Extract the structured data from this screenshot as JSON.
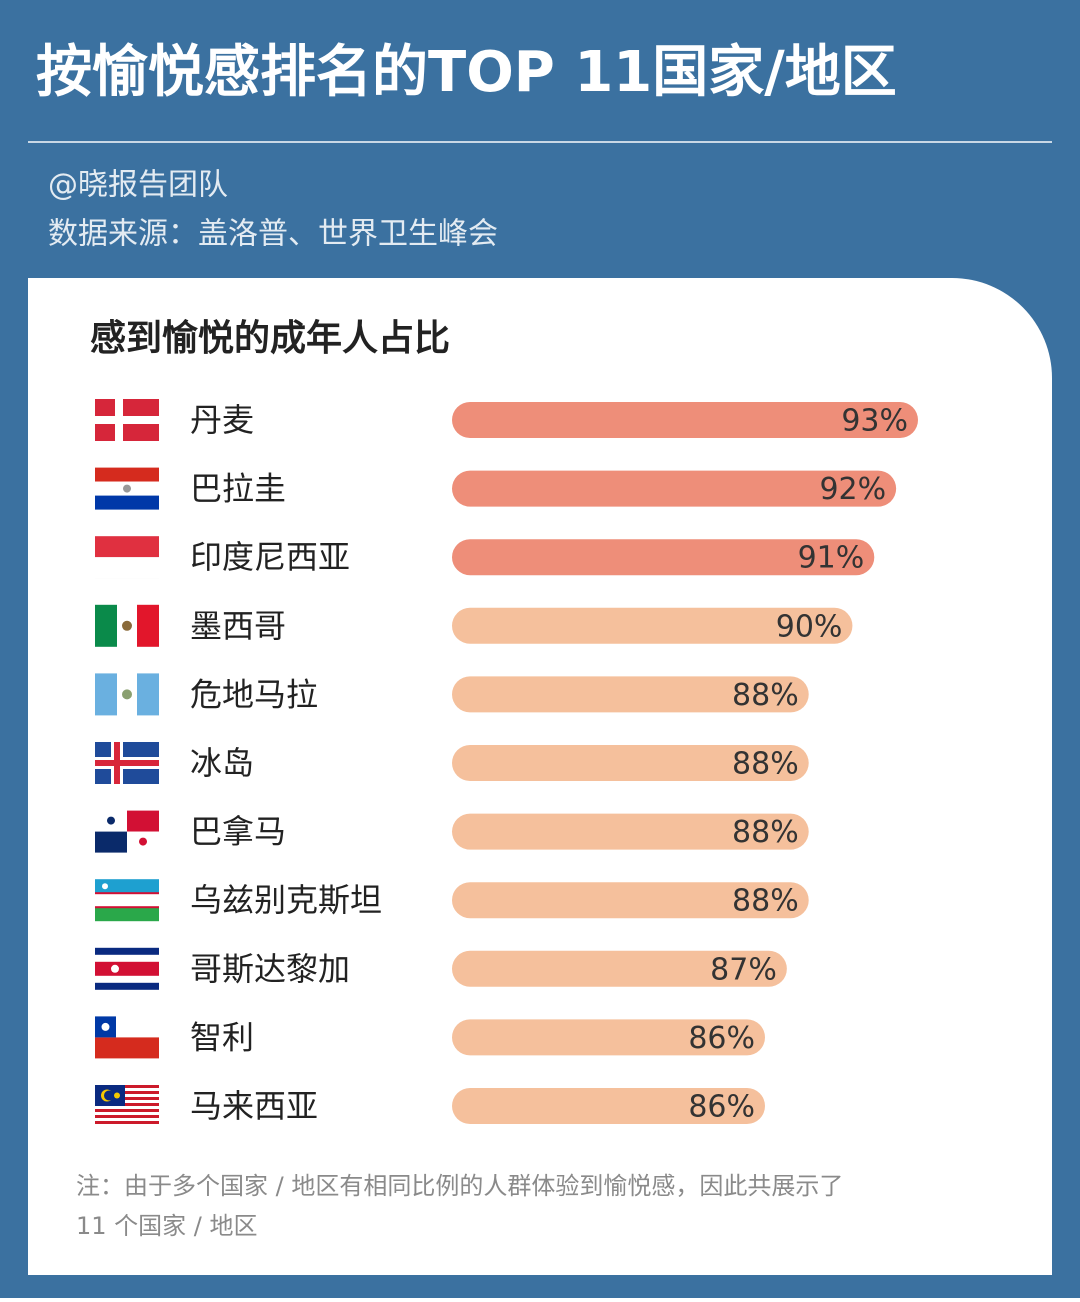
{
  "chart_data": {
    "type": "bar",
    "title": "按愉悦感排名的TOP 11国家/地区",
    "author": "@晓报告团队",
    "source": "数据来源：盖洛普、世界卫生峰会",
    "subtitle": "感到愉悦的成年人占比",
    "categories": [
      "丹麦",
      "巴拉圭",
      "印度尼西亚",
      "墨西哥",
      "危地马拉",
      "冰岛",
      "巴拿马",
      "乌兹别克斯坦",
      "哥斯达黎加",
      "智利",
      "马来西亚"
    ],
    "values": [
      93,
      92,
      91,
      90,
      88,
      88,
      88,
      88,
      87,
      86,
      86
    ],
    "value_labels": [
      "93%",
      "92%",
      "91%",
      "90%",
      "88%",
      "88%",
      "88%",
      "88%",
      "87%",
      "86%",
      "86%"
    ],
    "colors": [
      "#ee8e79",
      "#ee8e79",
      "#ee8e79",
      "#f5c09c",
      "#f5c09c",
      "#f5c09c",
      "#f5c09c",
      "#f5c09c",
      "#f5c09c",
      "#f5c09c",
      "#f5c09c"
    ],
    "note": [
      "注：由于多个国家 / 地区有相同比例的人群体验到愉悦感，因此共展示了",
      "11 个国家 / 地区"
    ]
  }
}
